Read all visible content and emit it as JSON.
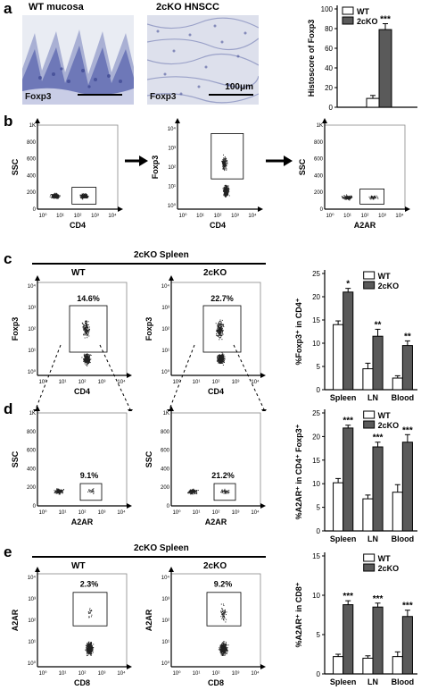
{
  "panel_labels": {
    "a": "a",
    "b": "b",
    "c": "c",
    "d": "d",
    "e": "e"
  },
  "panel_a": {
    "image1_title": "WT mucosa",
    "image2_title": "2cKO HNSCC",
    "image1_stain": "Foxp3",
    "image2_stain": "Foxp3",
    "scalebar": "100μm"
  },
  "headers": {
    "c_group": "2cKO Spleen",
    "e_group": "2cKO Spleen",
    "wt": "WT",
    "ko": "2cKO"
  },
  "flow": {
    "b1": {
      "y": "SSC",
      "x": "CD4"
    },
    "b2": {
      "y": "Foxp3",
      "x": "CD4"
    },
    "b3": {
      "y": "SSC",
      "x": "A2AR"
    },
    "c_wt": {
      "y": "Foxp3",
      "x": "CD4",
      "pct": "14.6%"
    },
    "c_ko": {
      "y": "Foxp3",
      "x": "CD4",
      "pct": "22.7%"
    },
    "d_wt": {
      "y": "SSC",
      "x": "A2AR",
      "pct": "9.1%"
    },
    "d_ko": {
      "y": "SSC",
      "x": "A2AR",
      "pct": "21.2%"
    },
    "e_wt": {
      "y": "A2AR",
      "x": "CD8",
      "pct": "2.3%"
    },
    "e_ko": {
      "y": "A2AR",
      "x": "CD8",
      "pct": "9.2%"
    }
  },
  "chart_data": [
    {
      "id": "a",
      "type": "bar",
      "ylabel": "Histoscore of Foxp3",
      "ylim": [
        0,
        100
      ],
      "yticks": [
        0,
        20,
        40,
        60,
        80,
        100
      ],
      "categories": [
        ""
      ],
      "series": [
        {
          "name": "WT",
          "values": [
            9
          ],
          "errors": [
            3
          ],
          "color": "#ffffff"
        },
        {
          "name": "2cKO",
          "values": [
            79
          ],
          "errors": [
            6
          ],
          "color": "#5a5a5a"
        }
      ],
      "significance": [
        "***"
      ],
      "legend": "top-left"
    },
    {
      "id": "c",
      "type": "bar",
      "ylabel": "%Foxp3⁺ in CD4⁺",
      "ylim": [
        0,
        25
      ],
      "yticks": [
        0,
        5,
        10,
        15,
        20,
        25
      ],
      "categories": [
        "Spleen",
        "LN",
        "Blood"
      ],
      "series": [
        {
          "name": "WT",
          "values": [
            14,
            4.5,
            2.5
          ],
          "errors": [
            0.8,
            1.2,
            0.5
          ],
          "color": "#ffffff"
        },
        {
          "name": "2cKO",
          "values": [
            21,
            11.5,
            9.5
          ],
          "errors": [
            0.8,
            1.5,
            1.0
          ],
          "color": "#5a5a5a"
        }
      ],
      "significance": [
        "*",
        "**",
        "**"
      ],
      "legend": "top-right"
    },
    {
      "id": "d",
      "type": "bar",
      "ylabel": "%A2AR⁺ in CD4⁺ Foxp3⁺",
      "ylim": [
        0,
        25
      ],
      "yticks": [
        0,
        5,
        10,
        15,
        20,
        25
      ],
      "categories": [
        "Spleen",
        "LN",
        "Blood"
      ],
      "series": [
        {
          "name": "WT",
          "values": [
            10.2,
            6.8,
            8.2
          ],
          "errors": [
            0.9,
            0.8,
            1.6
          ],
          "color": "#ffffff"
        },
        {
          "name": "2cKO",
          "values": [
            21.8,
            17.8,
            18.8
          ],
          "errors": [
            0.6,
            1.0,
            1.6
          ],
          "color": "#5a5a5a"
        }
      ],
      "significance": [
        "***",
        "***",
        "***"
      ],
      "legend": "top-right"
    },
    {
      "id": "e",
      "type": "bar",
      "ylabel": "%A2AR⁺ in CD8⁺",
      "ylim": [
        0,
        15
      ],
      "yticks": [
        0,
        5,
        10,
        15
      ],
      "categories": [
        "Spleen",
        "LN",
        "Blood"
      ],
      "series": [
        {
          "name": "WT",
          "values": [
            2.2,
            2.0,
            2.2
          ],
          "errors": [
            0.3,
            0.3,
            0.6
          ],
          "color": "#ffffff"
        },
        {
          "name": "2cKO",
          "values": [
            8.8,
            8.5,
            7.3
          ],
          "errors": [
            0.5,
            0.5,
            0.8
          ],
          "color": "#5a5a5a"
        }
      ],
      "significance": [
        "***",
        "***",
        "***"
      ],
      "legend": "top-right"
    }
  ]
}
